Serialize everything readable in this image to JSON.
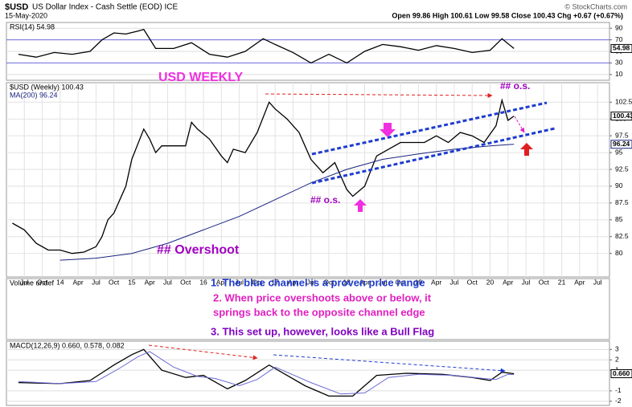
{
  "header": {
    "symbol": "$USD",
    "name": "US Dollar Index - Cash Settle (EOD) ICE",
    "date": "15-May-2020",
    "quote": "Open 99.86 High 100.61 Low 99.58 Close 100.43 Chg +0.67 (+0.67%)",
    "credit": "© StockCharts.com",
    "volume": "Volume undef"
  },
  "chart_data": [
    {
      "type": "line",
      "title": "RSI(14) 54.98",
      "xlim": [
        "2013-04",
        "2021-09"
      ],
      "ylim": [
        0,
        100
      ],
      "yticks": [
        10,
        30,
        50,
        70,
        90
      ],
      "series": [
        {
          "name": "RSI(14)",
          "color": "#000000",
          "last_label": "54.98",
          "x": [
            "2013-06",
            "2013-09",
            "2013-12",
            "2014-03",
            "2014-06",
            "2014-08",
            "2014-10",
            "2014-12",
            "2015-02",
            "2015-03",
            "2015-05",
            "2015-08",
            "2015-11",
            "2016-02",
            "2016-05",
            "2016-08",
            "2016-11",
            "2017-01",
            "2017-04",
            "2017-07",
            "2017-10",
            "2018-01",
            "2018-04",
            "2018-07",
            "2018-10",
            "2019-01",
            "2019-04",
            "2019-07",
            "2019-10",
            "2020-01",
            "2020-03",
            "2020-05"
          ],
          "values": [
            45,
            40,
            48,
            45,
            50,
            70,
            82,
            80,
            85,
            88,
            55,
            55,
            65,
            45,
            40,
            50,
            72,
            62,
            48,
            30,
            45,
            30,
            50,
            62,
            58,
            52,
            60,
            55,
            48,
            52,
            72,
            54.98
          ]
        }
      ]
    },
    {
      "type": "line",
      "title": "$USD (Weekly) 100.43",
      "subtitle": "MA(200) 96.24",
      "heading": "USD WEEKLY",
      "xlim": [
        "2013-04",
        "2021-09"
      ],
      "ylim": [
        76.5,
        105.4
      ],
      "yticks": [
        80,
        82.5,
        85,
        87.5,
        90,
        92.5,
        95,
        97.5,
        100,
        102.5
      ],
      "grid": true,
      "xticks": [
        {
          "value": "2013-07",
          "label": "Jul"
        },
        {
          "value": "2013-10",
          "label": "Oct"
        },
        {
          "value": "2014-01",
          "label": "14"
        },
        {
          "value": "2014-04",
          "label": "Apr"
        },
        {
          "value": "2014-07",
          "label": "Jul"
        },
        {
          "value": "2014-10",
          "label": "Oct"
        },
        {
          "value": "2015-01",
          "label": "15"
        },
        {
          "value": "2015-04",
          "label": "Apr"
        },
        {
          "value": "2015-07",
          "label": "Jul"
        },
        {
          "value": "2015-10",
          "label": "Oct"
        },
        {
          "value": "2016-01",
          "label": "16"
        },
        {
          "value": "2016-04",
          "label": "Apr"
        },
        {
          "value": "2016-07",
          "label": "Jul"
        },
        {
          "value": "2016-10",
          "label": "Oct"
        },
        {
          "value": "2017-01",
          "label": "17"
        },
        {
          "value": "2017-04",
          "label": "Apr"
        },
        {
          "value": "2017-07",
          "label": "Jul"
        },
        {
          "value": "2017-10",
          "label": "Oct"
        },
        {
          "value": "2018-01",
          "label": "18"
        },
        {
          "value": "2018-04",
          "label": "Apr"
        },
        {
          "value": "2018-07",
          "label": "Jul"
        },
        {
          "value": "2018-10",
          "label": "Oct"
        },
        {
          "value": "2019-01",
          "label": "19"
        },
        {
          "value": "2019-04",
          "label": "Apr"
        },
        {
          "value": "2019-07",
          "label": "Jul"
        },
        {
          "value": "2019-10",
          "label": "Oct"
        },
        {
          "value": "2020-01",
          "label": "20"
        },
        {
          "value": "2020-04",
          "label": "Apr"
        },
        {
          "value": "2020-07",
          "label": "Jul"
        },
        {
          "value": "2020-10",
          "label": "Oct"
        },
        {
          "value": "2021-01",
          "label": "21"
        },
        {
          "value": "2021-04",
          "label": "Apr"
        },
        {
          "value": "2021-07",
          "label": "Jul"
        }
      ],
      "series": [
        {
          "name": "$USD",
          "color": "#000000",
          "last_label": "100.43",
          "x": [
            "2013-05",
            "2013-07",
            "2013-09",
            "2013-11",
            "2014-01",
            "2014-03",
            "2014-05",
            "2014-07",
            "2014-08",
            "2014-09",
            "2014-10",
            "2014-11",
            "2014-12",
            "2015-01",
            "2015-03",
            "2015-04",
            "2015-05",
            "2015-06",
            "2015-08",
            "2015-10",
            "2015-11",
            "2015-12",
            "2016-02",
            "2016-04",
            "2016-05",
            "2016-06",
            "2016-08",
            "2016-10",
            "2016-12",
            "2017-01",
            "2017-03",
            "2017-05",
            "2017-07",
            "2017-09",
            "2017-11",
            "2018-01",
            "2018-02",
            "2018-04",
            "2018-06",
            "2018-08",
            "2018-10",
            "2018-12",
            "2019-02",
            "2019-04",
            "2019-06",
            "2019-08",
            "2019-10",
            "2019-12",
            "2020-02",
            "2020-03",
            "2020-04",
            "2020-05"
          ],
          "values": [
            84.5,
            83.5,
            81.5,
            80.5,
            80.5,
            80,
            80.2,
            81,
            82.5,
            85,
            86,
            88,
            90,
            94,
            98.5,
            97,
            95,
            96,
            96,
            96,
            99.5,
            98.5,
            97,
            94.5,
            93.5,
            95.5,
            95,
            98,
            102.5,
            101.5,
            100,
            98,
            94,
            92,
            93.5,
            89.5,
            88.5,
            90,
            94.5,
            95.5,
            96.5,
            96.5,
            96.5,
            97.5,
            96.5,
            98,
            97.5,
            96.5,
            99,
            102.8,
            99.8,
            100.43
          ]
        },
        {
          "name": "MA(200)",
          "color": "#1a237e",
          "last_label": "96.24",
          "x": [
            "2014-01",
            "2014-07",
            "2015-01",
            "2015-07",
            "2016-01",
            "2016-07",
            "2017-01",
            "2017-07",
            "2018-01",
            "2018-07",
            "2019-01",
            "2019-07",
            "2020-01",
            "2020-05"
          ],
          "values": [
            79,
            79.3,
            80,
            81.5,
            83.5,
            85.5,
            88,
            90.5,
            92.5,
            94,
            94.8,
            95.5,
            96,
            96.24
          ]
        }
      ],
      "annotations": [
        {
          "text": "## o.s.",
          "color": "#a000c0"
        },
        {
          "text": "## o.s.",
          "color": "#a000c0"
        },
        {
          "text": "## Overshoot",
          "color": "#a000c0"
        },
        {
          "text": "1. The blue channel is a proven price range",
          "color": "#1e3cd0"
        },
        {
          "text": "2. When price overshoots above or below, it",
          "color": "#e020c0"
        },
        {
          "text": "springs back to the opposite channel edge",
          "color": "#e020c0"
        },
        {
          "text": "3. This set up, however, looks like a Bull Flag",
          "color": "#8000c0"
        }
      ]
    },
    {
      "type": "line",
      "title": "MACD(12,26,9) 0.660, 0.578, 0.082",
      "xlim": [
        "2013-04",
        "2021-09"
      ],
      "ylim": [
        -2.4,
        3.8
      ],
      "yticks": [
        3,
        2,
        1,
        -1,
        -2
      ],
      "series": [
        {
          "name": "MACD",
          "color": "#000000",
          "last_label": "0.660",
          "x": [
            "2013-06",
            "2014-01",
            "2014-06",
            "2014-10",
            "2015-01",
            "2015-03",
            "2015-06",
            "2015-10",
            "2016-01",
            "2016-05",
            "2016-08",
            "2016-12",
            "2017-06",
            "2017-10",
            "2018-02",
            "2018-06",
            "2018-11",
            "2019-05",
            "2019-10",
            "2020-01",
            "2020-03",
            "2020-05"
          ],
          "values": [
            -0.2,
            -0.3,
            0,
            1.5,
            2.5,
            3,
            1,
            0.3,
            0.5,
            -0.8,
            0,
            1.5,
            -0.5,
            -1.5,
            -1.5,
            0.5,
            0.7,
            0.6,
            0.3,
            0,
            0.8,
            0.66
          ]
        },
        {
          "name": "Signal",
          "color": "#6a6ad8",
          "x": [
            "2013-06",
            "2014-01",
            "2014-07",
            "2014-11",
            "2015-02",
            "2015-04",
            "2015-08",
            "2015-12",
            "2016-03",
            "2016-07",
            "2016-10",
            "2017-01",
            "2017-07",
            "2017-12",
            "2018-04",
            "2018-08",
            "2019-01",
            "2019-07",
            "2019-12",
            "2020-02",
            "2020-04",
            "2020-05"
          ],
          "values": [
            -0.1,
            -0.3,
            -0.1,
            1.2,
            2.3,
            2.8,
            1.3,
            0.4,
            0.2,
            -0.5,
            0.1,
            1.3,
            -0.2,
            -1.3,
            -1.2,
            0.3,
            0.6,
            0.5,
            0.2,
            0.1,
            0.6,
            0.578
          ]
        }
      ]
    }
  ]
}
